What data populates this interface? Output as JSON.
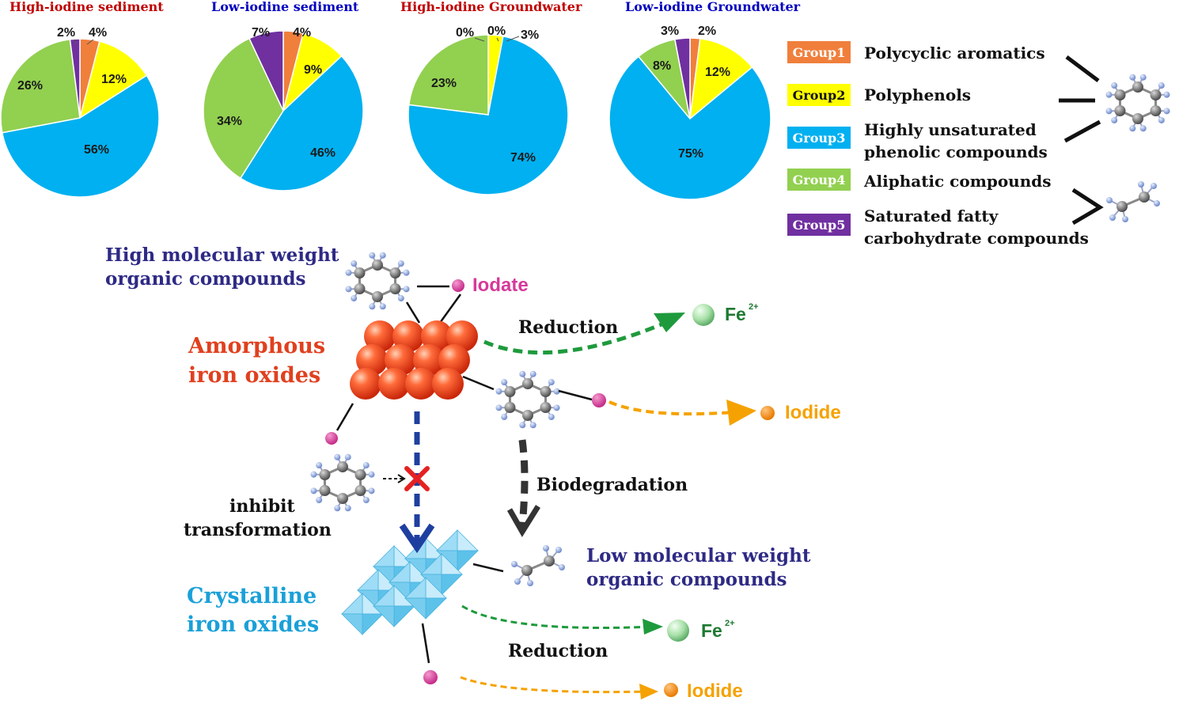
{
  "colors": {
    "group1": "#f07f3c",
    "group2": "#ffff00",
    "group3": "#00b0f0",
    "group4": "#92d050",
    "group5": "#7030a0",
    "title_high": "#c00000",
    "title_low": "#0000c0",
    "navy_text": "#2e2a85",
    "amorphous_text": "#e0401f",
    "crystalline_text": "#1aa0d8",
    "green": "#1e9a3c",
    "orange": "#f5a200",
    "magenta": "#d6399a",
    "blue_arrow": "#1f3fa0"
  },
  "chart_data": [
    {
      "type": "pie",
      "title": "High-iodine sediment",
      "categories": [
        "Group1",
        "Group2",
        "Group3",
        "Group4",
        "Group5"
      ],
      "values": [
        4,
        12,
        56,
        26,
        2
      ],
      "labels": [
        "4%",
        "12%",
        "56%",
        "26%",
        "2%"
      ]
    },
    {
      "type": "pie",
      "title": "Low-iodine sediment",
      "categories": [
        "Group1",
        "Group2",
        "Group3",
        "Group4",
        "Group5"
      ],
      "values": [
        4,
        9,
        46,
        34,
        7
      ],
      "labels": [
        "4%",
        "9%",
        "46%",
        "34%",
        "7%"
      ]
    },
    {
      "type": "pie",
      "title": "High-iodine Groundwater",
      "categories": [
        "Group1",
        "Group2",
        "Group3",
        "Group4",
        "Group5"
      ],
      "values": [
        0,
        3,
        74,
        23,
        0
      ],
      "labels": [
        "0%",
        "3%",
        "74%",
        "23%",
        "0%"
      ]
    },
    {
      "type": "pie",
      "title": "Low-iodine Groundwater",
      "categories": [
        "Group1",
        "Group2",
        "Group3",
        "Group4",
        "Group5"
      ],
      "values": [
        2,
        12,
        75,
        8,
        3
      ],
      "labels": [
        "2%",
        "12%",
        "75%",
        "8%",
        "3%"
      ]
    }
  ],
  "legend": [
    {
      "tag": "Group1",
      "text": [
        "Polycyclic aromatics"
      ]
    },
    {
      "tag": "Group2",
      "text": [
        "Polyphenols"
      ]
    },
    {
      "tag": "Group3",
      "text": [
        "Highly unsaturated",
        "phenolic compounds"
      ]
    },
    {
      "tag": "Group4",
      "text": [
        "Aliphatic compounds"
      ]
    },
    {
      "tag": "Group5",
      "text": [
        "Saturated fatty",
        "carbohydrate compounds"
      ]
    }
  ],
  "diagram": {
    "high_mw": [
      "High molecular weight",
      "organic compounds"
    ],
    "iodate": "Iodate",
    "amorphous": [
      "Amorphous",
      "iron oxides"
    ],
    "reduction_top": "Reduction",
    "fe_top": "Fe",
    "fe_sup": "2+",
    "iodide_mid": "Iodide",
    "biodegradation": "Biodegradation",
    "inhibit": [
      "inhibit",
      "transformation"
    ],
    "low_mw": [
      "Low molecular weight",
      "organic compounds"
    ],
    "crystalline": [
      "Crystalline",
      "iron oxides"
    ],
    "reduction_bottom": "Reduction",
    "fe_bottom": "Fe",
    "iodide_bottom": "Iodide"
  }
}
